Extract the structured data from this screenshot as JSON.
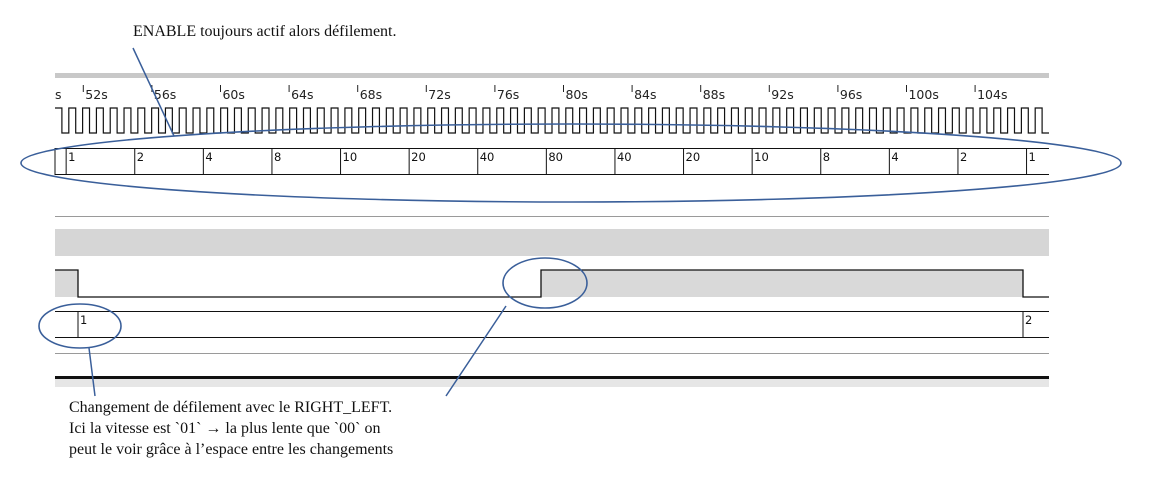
{
  "timeline": {
    "start_label": "s",
    "ticks": [
      "52s",
      "56s",
      "60s",
      "64s",
      "68s",
      "72s",
      "76s",
      "80s",
      "84s",
      "88s",
      "92s",
      "96s",
      "100s",
      "104s"
    ]
  },
  "bus_enable": {
    "values": [
      "1",
      "2",
      "4",
      "8",
      "10",
      "20",
      "40",
      "80",
      "40",
      "20",
      "10",
      "8",
      "4",
      "2",
      "1"
    ]
  },
  "bus_right_left": {
    "values": [
      "1",
      "2"
    ]
  },
  "signal_high_spans": [
    {
      "from": "start",
      "to": "~53.3s"
    },
    {
      "from": "~77.4s",
      "to": "~104s"
    }
  ],
  "annotations": {
    "top": "ENABLE toujours actif alors défilement.",
    "bottom_line1": "Changement de défilement avec le RIGHT_LEFT.",
    "bottom_line2": "Ici la vitesse est `01` → la plus lente que `00` on",
    "bottom_line3": "peut le voir grâce à l’espace entre les changements"
  },
  "colors": {
    "callout": "#3a5f9a",
    "trace": "#111111",
    "lane_fill": "#d9d9d9",
    "lane_fill_dark": "#cfcfcf",
    "divider": "#9a9a9a"
  }
}
